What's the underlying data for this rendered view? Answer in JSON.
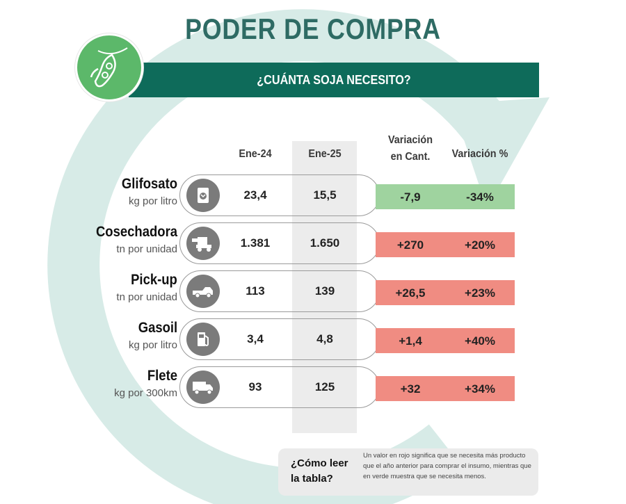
{
  "header": {
    "title": "PODER DE COMPRA",
    "subtitle": "¿CUÁNTA SOJA NECESITO?",
    "logo_icon": "soybean-pod-icon"
  },
  "columns": {
    "prev": "Ene-24",
    "curr": "Ene-25",
    "var_qty": [
      "Variación",
      "en Cant."
    ],
    "var_pct": "Variación %"
  },
  "colors": {
    "brand_dark": "#0e6b5a",
    "brand_light": "#5cb86a",
    "decrease": "#9fd39f",
    "increase": "#f08c82"
  },
  "rows": [
    {
      "name": "Glifosato",
      "unit": "kg por litro",
      "icon": "herbicide-bag-icon",
      "prev": "23,4",
      "curr": "15,5",
      "var_qty": "-7,9",
      "var_pct": "-34%",
      "trend": "decrease"
    },
    {
      "name": "Cosechadora",
      "unit": "tn por unidad",
      "icon": "harvester-icon",
      "prev": "1.381",
      "curr": "1.650",
      "var_qty": "+270",
      "var_pct": "+20%",
      "trend": "increase"
    },
    {
      "name": "Pick-up",
      "unit": "tn por unidad",
      "icon": "pickup-truck-icon",
      "prev": "113",
      "curr": "139",
      "var_qty": "+26,5",
      "var_pct": "+23%",
      "trend": "increase"
    },
    {
      "name": "Gasoil",
      "unit": "kg por litro",
      "icon": "fuel-pump-icon",
      "prev": "3,4",
      "curr": "4,8",
      "var_qty": "+1,4",
      "var_pct": "+40%",
      "trend": "increase"
    },
    {
      "name": "Flete",
      "unit": "kg por 300km",
      "icon": "truck-icon",
      "prev": "93",
      "curr": "125",
      "var_qty": "+32",
      "var_pct": "+34%",
      "trend": "increase"
    }
  ],
  "note": {
    "question": "¿Cómo leer la tabla?",
    "text": "Un valor en rojo significa que se necesita más producto que el año anterior para comprar el insumo, mientras que en verde muestra que se necesita menos."
  }
}
